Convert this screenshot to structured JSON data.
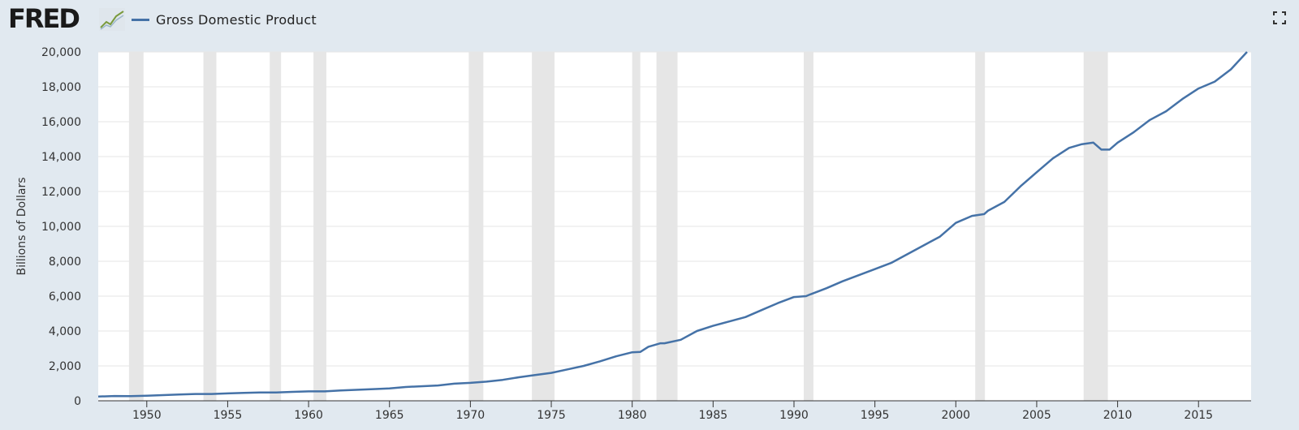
{
  "header": {
    "logo_text": "FRED",
    "logo_graph_icon": "line-chart-icon",
    "expand_icon": "fullscreen-icon"
  },
  "chart_data": {
    "type": "line",
    "title": "",
    "ylabel": "Billions of Dollars",
    "xlabel": "",
    "xlim": [
      1947,
      2018.25
    ],
    "ylim": [
      0,
      20000
    ],
    "yticks": [
      0,
      2000,
      4000,
      6000,
      8000,
      10000,
      12000,
      14000,
      16000,
      18000,
      20000
    ],
    "ytick_labels": [
      "0",
      "2,000",
      "4,000",
      "6,000",
      "8,000",
      "10,000",
      "12,000",
      "14,000",
      "16,000",
      "18,000",
      "20,000"
    ],
    "xticks": [
      1950,
      1955,
      1960,
      1965,
      1970,
      1975,
      1980,
      1985,
      1990,
      1995,
      2000,
      2005,
      2010,
      2015
    ],
    "xtick_labels": [
      "1950",
      "1955",
      "1960",
      "1965",
      "1970",
      "1975",
      "1980",
      "1985",
      "1990",
      "1995",
      "2000",
      "2005",
      "2010",
      "2015"
    ],
    "grid": true,
    "legend_placement": "top-left",
    "colors": {
      "series": "#4572a7",
      "recession": "#e6e6e6",
      "plot_bg": "#ffffff",
      "grid": "#e6e6e6"
    },
    "recessions": [
      [
        1948.9,
        1949.8
      ],
      [
        1953.5,
        1954.3
      ],
      [
        1957.6,
        1958.3
      ],
      [
        1960.3,
        1961.1
      ],
      [
        1969.9,
        1970.8
      ],
      [
        1973.8,
        1975.2
      ],
      [
        1980.0,
        1980.5
      ],
      [
        1981.5,
        1982.8
      ],
      [
        1990.6,
        1991.2
      ],
      [
        2001.2,
        2001.8
      ],
      [
        2007.9,
        2009.4
      ]
    ],
    "series": [
      {
        "name": "Gross Domestic Product",
        "x": [
          1947,
          1948,
          1949,
          1950,
          1952,
          1953,
          1954,
          1955,
          1956,
          1957,
          1958,
          1959,
          1960,
          1961,
          1962,
          1964,
          1965,
          1966,
          1968,
          1969,
          1970,
          1971,
          1972,
          1973,
          1974,
          1975,
          1976,
          1977,
          1978,
          1979,
          1980,
          1980.5,
          1981,
          1981.75,
          1982,
          1983,
          1984,
          1985,
          1986,
          1987,
          1988,
          1989,
          1990,
          1990.75,
          1991,
          1992,
          1993,
          1994,
          1995,
          1996,
          1997,
          1998,
          1999,
          2000,
          2001,
          2001.75,
          2002,
          2003,
          2004,
          2005,
          2006,
          2007,
          2007.75,
          2008.5,
          2009,
          2009.5,
          2010,
          2011,
          2012,
          2013,
          2014,
          2015,
          2016,
          2017,
          2018
        ],
        "values": [
          243,
          275,
          270,
          293,
          365,
          390,
          390,
          425,
          450,
          475,
          480,
          510,
          540,
          540,
          590,
          670,
          710,
          790,
          880,
          980,
          1030,
          1100,
          1200,
          1350,
          1480,
          1600,
          1800,
          2000,
          2260,
          2550,
          2780,
          2800,
          3100,
          3300,
          3300,
          3500,
          4000,
          4300,
          4550,
          4800,
          5200,
          5600,
          5950,
          6000,
          6100,
          6450,
          6850,
          7200,
          7550,
          7900,
          8400,
          8900,
          9400,
          10200,
          10600,
          10700,
          10900,
          11400,
          12300,
          13100,
          13900,
          14500,
          14700,
          14800,
          14400,
          14400,
          14800,
          15400,
          16100,
          16600,
          17300,
          17900,
          18300,
          19000,
          20000
        ]
      }
    ]
  }
}
